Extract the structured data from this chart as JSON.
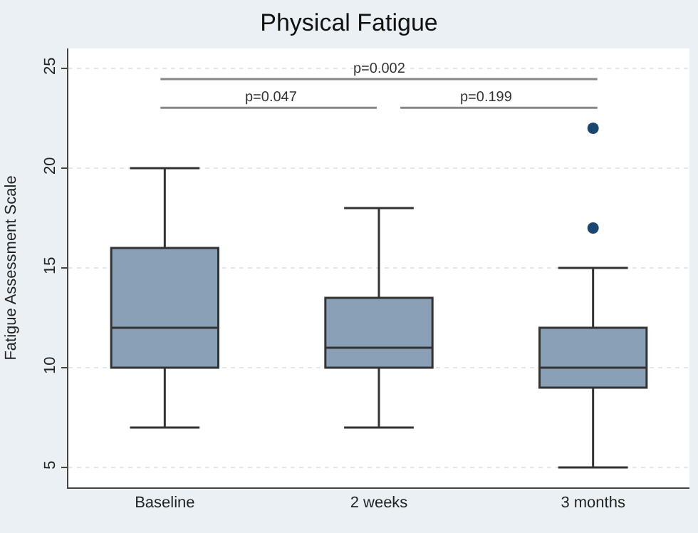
{
  "chart_data": {
    "type": "box",
    "title": "Physical Fatigue",
    "ylabel": "Fatigue Assessment Scale",
    "categories": [
      "Baseline",
      "2 weeks",
      "3 months"
    ],
    "series": [
      {
        "color": "#8aa0b6",
        "boxes": [
          {
            "low": 7,
            "q1": 10,
            "median": 12,
            "q3": 16,
            "high": 20
          },
          {
            "low": 7,
            "q1": 10,
            "median": 11,
            "q3": 13.5,
            "high": 18
          },
          {
            "low": 5,
            "q1": 9,
            "median": 10,
            "q3": 12,
            "high": 15,
            "outliers": [
              17,
              22
            ]
          }
        ]
      }
    ],
    "ylim": [
      4,
      26
    ],
    "yticks": [
      5,
      10,
      15,
      20,
      25
    ],
    "grid": "y",
    "annotations": [
      "p=0.002",
      "p=0.047",
      "p=0.199"
    ]
  }
}
